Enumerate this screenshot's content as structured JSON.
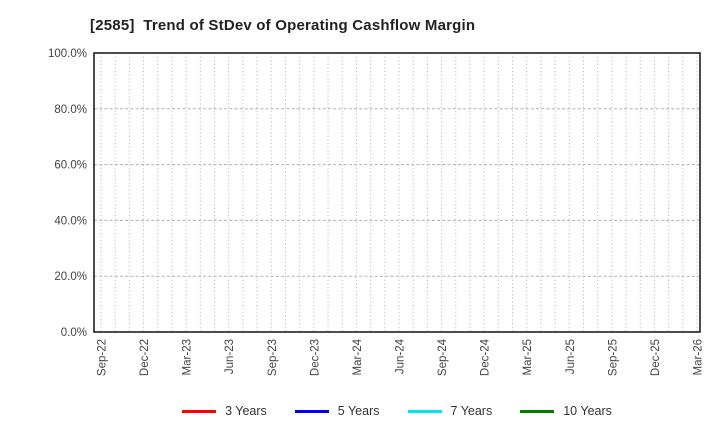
{
  "chart_data": {
    "type": "line",
    "title": "[2585]  Trend of StDev of Operating Cashflow Margin",
    "categories": [
      "Sep-22",
      "Dec-22",
      "Mar-23",
      "Jun-23",
      "Sep-23",
      "Dec-23",
      "Mar-24",
      "Jun-24",
      "Sep-24",
      "Dec-24",
      "Mar-25",
      "Jun-25",
      "Sep-25",
      "Dec-25",
      "Mar-26"
    ],
    "minor_vertical_gridlines_per_interval": 3,
    "ylim": [
      0,
      100
    ],
    "yticks": [
      {
        "value": 0,
        "label": "0.0%"
      },
      {
        "value": 20,
        "label": "20.0%"
      },
      {
        "value": 40,
        "label": "40.0%"
      },
      {
        "value": 60,
        "label": "60.0%"
      },
      {
        "value": 80,
        "label": "80.0%"
      },
      {
        "value": 100,
        "label": "100.0%"
      }
    ],
    "series": [
      {
        "name": "3 Years",
        "color": "#ff0000",
        "values": []
      },
      {
        "name": "5 Years",
        "color": "#0000ff",
        "values": []
      },
      {
        "name": "7 Years",
        "color": "#00e5e5",
        "values": []
      },
      {
        "name": "10 Years",
        "color": "#008000",
        "values": []
      }
    ],
    "legend_position": "bottom",
    "grid": {
      "horizontal_style": "dashed",
      "vertical_style": "dotted",
      "color": "#b0b0b0"
    }
  },
  "colors": {
    "background": "#ffffff",
    "spine": "#1f1f1f",
    "title_text": "#222222",
    "tick_text": "#444444",
    "legend_text": "#333333"
  }
}
